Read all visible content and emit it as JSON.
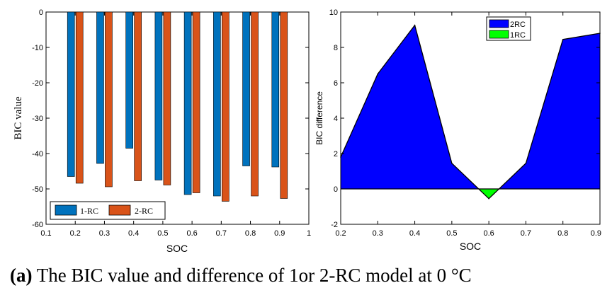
{
  "caption": {
    "label": "(a)",
    "text": "The BIC value and difference of 1or 2-RC model at 0 °C"
  },
  "chart_data": [
    {
      "type": "bar",
      "title": "",
      "xlabel": "SOC",
      "ylabel": "BIC value",
      "xlim": [
        0.1,
        1.0
      ],
      "ylim": [
        -60,
        0
      ],
      "xticks": [
        "0.1",
        "0.2",
        "0.3",
        "0.4",
        "0.5",
        "0.6",
        "0.7",
        "0.8",
        "0.9",
        "1"
      ],
      "yticks": [
        "0",
        "-10",
        "-20",
        "-30",
        "-40",
        "-50",
        "-60"
      ],
      "categories": [
        0.2,
        0.3,
        0.4,
        0.5,
        0.6,
        0.7,
        0.8,
        0.9
      ],
      "series": [
        {
          "name": "1-RC",
          "color": "#0072BD",
          "values": [
            -46.5,
            -42.8,
            -38.5,
            -47.5,
            -51.6,
            -52.0,
            -43.5,
            -43.8
          ]
        },
        {
          "name": "2-RC",
          "color": "#D95319",
          "values": [
            -48.4,
            -49.4,
            -47.7,
            -48.9,
            -51.1,
            -53.5,
            -52.0,
            -52.7
          ]
        }
      ],
      "legend": {
        "position": "bottom-left",
        "entries": [
          "1-RC",
          "2-RC"
        ]
      }
    },
    {
      "type": "area",
      "title": "",
      "xlabel": "SOC",
      "ylabel": "BIC difference",
      "xlim": [
        0.2,
        0.9
      ],
      "ylim": [
        -2,
        10
      ],
      "xticks": [
        "0.2",
        "0.3",
        "0.4",
        "0.5",
        "0.6",
        "0.7",
        "0.8",
        "0.9"
      ],
      "yticks": [
        "10",
        "8",
        "6",
        "4",
        "2",
        "0",
        "-2"
      ],
      "x": [
        0.2,
        0.3,
        0.4,
        0.5,
        0.6,
        0.7,
        0.8,
        0.9
      ],
      "y": [
        1.8,
        6.5,
        9.25,
        1.45,
        -0.55,
        1.45,
        8.45,
        8.8
      ],
      "series": [
        {
          "name": "2RC",
          "color": "#0000FF"
        },
        {
          "name": "1RC",
          "color": "#00FF00"
        }
      ],
      "legend": {
        "position": "top-right",
        "entries": [
          "2RC",
          "1RC"
        ]
      }
    }
  ]
}
